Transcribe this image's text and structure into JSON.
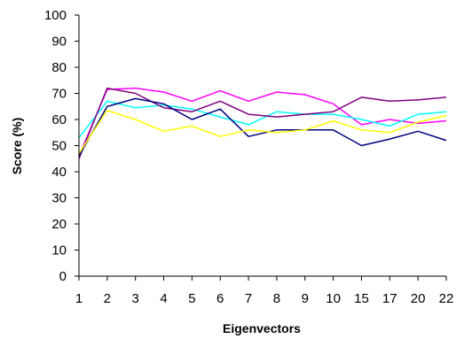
{
  "chart_data": {
    "type": "line",
    "title": "",
    "xlabel": "Eigenvectors",
    "ylabel": "Score (%)",
    "categories": [
      "1",
      "2",
      "3",
      "4",
      "5",
      "6",
      "7",
      "8",
      "9",
      "10",
      "15",
      "17",
      "20",
      "22"
    ],
    "ylim": [
      0,
      100
    ],
    "yticks": [
      0,
      10,
      20,
      30,
      40,
      50,
      60,
      70,
      80,
      90,
      100
    ],
    "grid": false,
    "legend": "none",
    "series": [
      {
        "color": "#FF00FF",
        "values": [
          46,
          71.5,
          72,
          70.5,
          67,
          71,
          67,
          70.5,
          69.5,
          66,
          58,
          60,
          58.5,
          59.5
        ]
      },
      {
        "color": "#00FFFF",
        "values": [
          53,
          67,
          64.5,
          65.5,
          64,
          61,
          58,
          63,
          62,
          62,
          60,
          57.5,
          62,
          63
        ]
      },
      {
        "color": "#800080",
        "values": [
          45,
          72,
          70,
          64.5,
          63,
          67,
          62,
          61,
          62,
          63,
          68.5,
          67,
          67.5,
          68.5
        ]
      },
      {
        "color": "#000080",
        "values": [
          46,
          65,
          68,
          66,
          60,
          64,
          53.5,
          56,
          56,
          56,
          50,
          52.5,
          55.5,
          52
        ]
      },
      {
        "color": "#FFFF00",
        "values": [
          47,
          63.5,
          60,
          55.5,
          57.5,
          53.5,
          56,
          55,
          56,
          59.5,
          56,
          55,
          59,
          61.5
        ]
      }
    ]
  }
}
